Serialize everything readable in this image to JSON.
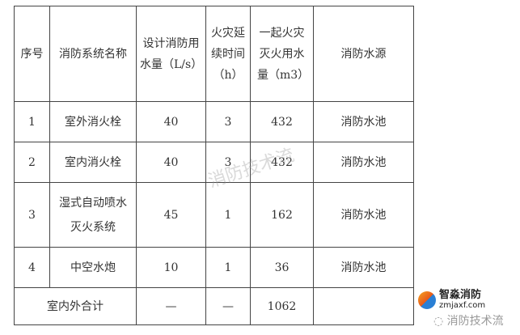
{
  "table": {
    "headers": [
      "序号",
      "消防系统名称",
      "设计消防用水量（L/s）",
      "火灾延续时间（h）",
      "一起火灾灭火用水量（m3）",
      "消防水源"
    ],
    "rows": [
      [
        "1",
        "室外消火栓",
        "40",
        "3",
        "432",
        "消防水池"
      ],
      [
        "2",
        "室内消火栓",
        "40",
        "3",
        "432",
        "消防水池"
      ],
      [
        "3",
        "湿式自动喷水灭火系统",
        "45",
        "1",
        "162",
        "消防水池"
      ],
      [
        "4",
        "中空水炮",
        "10",
        "1",
        "36",
        "消防水池"
      ]
    ],
    "total": {
      "label": "室内外合计",
      "flow": "—",
      "duration": "—",
      "volume": "1062",
      "source": ""
    }
  },
  "watermark": "消防技术流",
  "logo": {
    "brand": "智淼消防",
    "url": "zmjaxf.com",
    "wechat": "消防技术流"
  }
}
